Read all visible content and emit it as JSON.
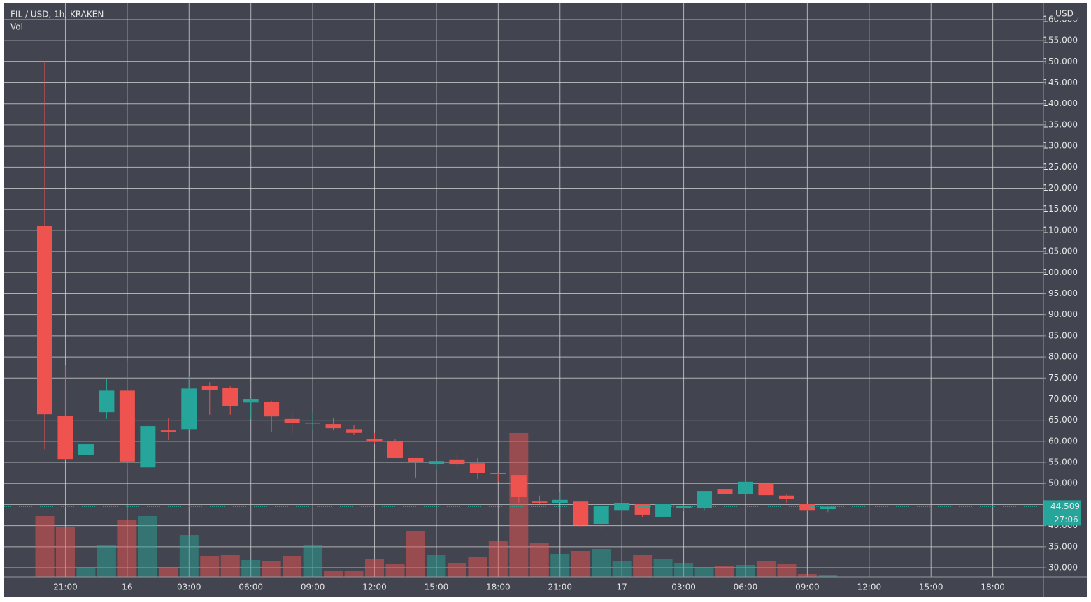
{
  "chart_data": {
    "type": "candlestick",
    "title": "FIL / USD, 1h, KRAKEN",
    "volume_label": "Vol",
    "currency": "USD",
    "last_price": 44.509,
    "countdown": "27:06",
    "up_color": "#26a69a",
    "down_color": "#ef5350",
    "grid": true,
    "open": [
      111.1,
      66.1,
      56.8,
      66.9,
      72.0,
      53.8,
      62.6,
      62.9,
      73.2,
      72.7,
      69.2,
      69.4,
      65.3,
      64.2,
      64.1,
      62.9,
      60.6,
      60.1,
      56.0,
      54.5,
      55.7,
      54.8,
      52.5,
      52.0,
      45.7,
      45.4,
      45.7,
      40.4,
      43.7,
      45.2,
      42.1,
      44.2,
      44.1,
      48.7,
      47.5,
      50.0,
      47.1,
      45.2,
      43.9
    ],
    "high": [
      150.2,
      78.0,
      59.3,
      74.9,
      79.0,
      63.9,
      65.6,
      75.5,
      74.0,
      73.0,
      70.2,
      69.6,
      66.9,
      66.9,
      65.6,
      63.8,
      62.0,
      60.6,
      56.0,
      55.3,
      57.0,
      56.0,
      52.5,
      52.0,
      47.1,
      47.9,
      45.7,
      44.6,
      46.7,
      45.2,
      45.1,
      44.9,
      48.2,
      48.7,
      50.4,
      50.4,
      47.4,
      45.2,
      44.6
    ],
    "low": [
      58.1,
      55.5,
      56.8,
      65.3,
      53.3,
      53.7,
      60.3,
      62.8,
      66.3,
      66.3,
      65.3,
      62.3,
      61.6,
      62.6,
      62.6,
      61.5,
      59.3,
      56.0,
      51.4,
      53.2,
      54.0,
      51.0,
      50.4,
      45.4,
      45.1,
      45.4,
      39.8,
      39.1,
      43.7,
      42.1,
      42.1,
      43.4,
      43.7,
      46.7,
      47.5,
      46.9,
      45.4,
      43.4,
      43.2
    ],
    "close": [
      66.4,
      55.8,
      59.3,
      72.0,
      55.2,
      63.6,
      62.3,
      72.5,
      72.2,
      68.4,
      69.9,
      65.9,
      64.3,
      64.4,
      63.1,
      62.0,
      60.1,
      56.0,
      55.0,
      55.3,
      54.5,
      52.5,
      52.2,
      46.9,
      45.4,
      46.1,
      40.1,
      44.6,
      45.4,
      42.6,
      45.1,
      44.6,
      48.2,
      47.5,
      50.4,
      47.2,
      46.4,
      43.7,
      44.5
    ],
    "volume": [
      87,
      71,
      13,
      45,
      82,
      87,
      13,
      60,
      30,
      31,
      24,
      22,
      30,
      45,
      9,
      9,
      26,
      18,
      65,
      32,
      20,
      29,
      52,
      206,
      49,
      33,
      37,
      40,
      23,
      32,
      26,
      20,
      13,
      16,
      17,
      22,
      18,
      4,
      3
    ],
    "ylim": [
      27.85,
      163.8
    ],
    "yticks": [
      {
        "value": 30,
        "label": "30.000"
      },
      {
        "value": 35,
        "label": "35.000"
      },
      {
        "value": 40,
        "label": "40.000"
      },
      {
        "value": 45,
        "label": "45.000"
      },
      {
        "value": 50,
        "label": "50.000"
      },
      {
        "value": 55,
        "label": "55.000"
      },
      {
        "value": 60,
        "label": "60.000"
      },
      {
        "value": 65,
        "label": "65.000"
      },
      {
        "value": 70,
        "label": "70.000"
      },
      {
        "value": 75,
        "label": "75.000"
      },
      {
        "value": 80,
        "label": "80.000"
      },
      {
        "value": 85,
        "label": "85.000"
      },
      {
        "value": 90,
        "label": "90.000"
      },
      {
        "value": 95,
        "label": "95.000"
      },
      {
        "value": 100,
        "label": "100.000"
      },
      {
        "value": 105,
        "label": "105.000"
      },
      {
        "value": 110,
        "label": "110.000"
      },
      {
        "value": 115,
        "label": "115.000"
      },
      {
        "value": 120,
        "label": "120.000"
      },
      {
        "value": 125,
        "label": "125.000"
      },
      {
        "value": 130,
        "label": "130.000"
      },
      {
        "value": 135,
        "label": "135.000"
      },
      {
        "value": 140,
        "label": "140.000"
      },
      {
        "value": 145,
        "label": "145.000"
      },
      {
        "value": 150,
        "label": "150.000"
      },
      {
        "value": 155,
        "label": "155.000"
      },
      {
        "value": 160,
        "label": "160.000"
      }
    ],
    "xticks": [
      {
        "value": 1,
        "label": "21:00"
      },
      {
        "value": 4,
        "label": "16"
      },
      {
        "value": 7,
        "label": "03:00"
      },
      {
        "value": 10,
        "label": "06:00"
      },
      {
        "value": 13,
        "label": "09:00"
      },
      {
        "value": 16,
        "label": "12:00"
      },
      {
        "value": 19,
        "label": "15:00"
      },
      {
        "value": 22,
        "label": "18:00"
      },
      {
        "value": 25,
        "label": "21:00"
      },
      {
        "value": 28,
        "label": "17"
      },
      {
        "value": 31,
        "label": "03:00"
      },
      {
        "value": 34,
        "label": "06:00"
      },
      {
        "value": 37,
        "label": "09:00"
      },
      {
        "value": 40,
        "label": "12:00"
      },
      {
        "value": 43,
        "label": "15:00"
      },
      {
        "value": 46,
        "label": "18:00"
      }
    ]
  }
}
